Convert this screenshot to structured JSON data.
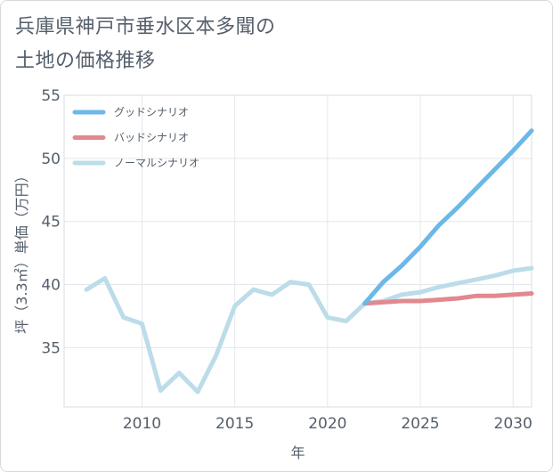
{
  "title_line1": "兵庫県神戸市垂水区本多聞の",
  "title_line2": "土地の価格推移",
  "chart_data": {
    "type": "line",
    "xlabel": "年",
    "ylabel": "坪（3.3㎡）単価（万円）",
    "xlim": [
      2005.8,
      2031
    ],
    "ylim": [
      30.3,
      55
    ],
    "xticks": [
      2010,
      2015,
      2020,
      2025,
      2030
    ],
    "yticks": [
      35,
      40,
      45,
      50,
      55
    ],
    "grid": true,
    "legend_position": "top-left",
    "series": [
      {
        "name": "グッドシナリオ",
        "color": "#6cb8e8",
        "x": [
          2022,
          2023,
          2024,
          2025,
          2026,
          2027,
          2028,
          2029,
          2030,
          2031
        ],
        "y": [
          38.5,
          40.2,
          41.5,
          43.0,
          44.7,
          46.1,
          47.6,
          49.1,
          50.6,
          52.2
        ]
      },
      {
        "name": "バッドシナリオ",
        "color": "#e0898f",
        "x": [
          2022,
          2023,
          2024,
          2025,
          2026,
          2027,
          2028,
          2029,
          2030,
          2031
        ],
        "y": [
          38.5,
          38.6,
          38.7,
          38.7,
          38.8,
          38.9,
          39.1,
          39.1,
          39.2,
          39.3
        ]
      },
      {
        "name": "ノーマルシナリオ",
        "color": "#bcdcea",
        "x": [
          2007,
          2008,
          2009,
          2010,
          2011,
          2012,
          2013,
          2014,
          2015,
          2016,
          2017,
          2018,
          2019,
          2020,
          2021,
          2022,
          2023,
          2024,
          2025,
          2026,
          2027,
          2028,
          2029,
          2030,
          2031
        ],
        "y": [
          39.6,
          40.5,
          37.4,
          36.9,
          31.6,
          33.0,
          31.5,
          34.4,
          38.3,
          39.6,
          39.2,
          40.2,
          40.0,
          37.4,
          37.1,
          38.5,
          38.7,
          39.2,
          39.4,
          39.8,
          40.1,
          40.4,
          40.7,
          41.1,
          41.3
        ]
      }
    ]
  }
}
